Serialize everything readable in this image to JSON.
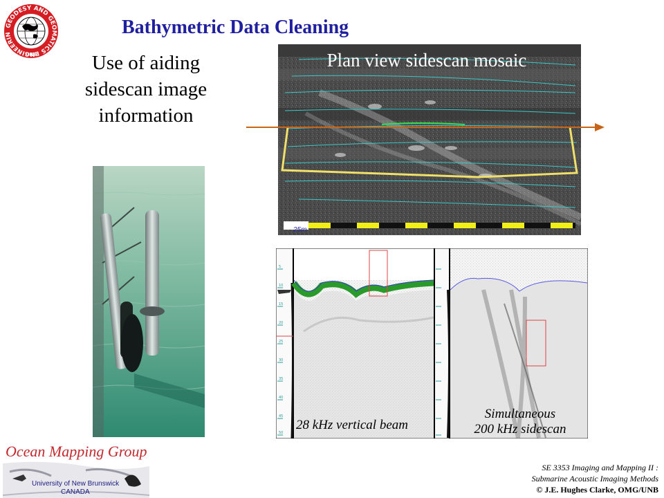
{
  "slide": {
    "title": "Bathymetric Data Cleaning",
    "subtitle_lines": [
      "Use of aiding",
      "sidescan image",
      "information"
    ]
  },
  "logo_unb": {
    "text": "GEODESY AND GEOMATICS ENGINEERING",
    "bottom": "UNB"
  },
  "mosaic": {
    "label": "Plan view sidescan mosaic",
    "scale_label": "25m"
  },
  "echogram": {
    "left_caption": "28 kHz vertical beam",
    "right_caption_lines": [
      "Simultaneous",
      "200 kHz sidescan"
    ],
    "depth_ticks": [
      "5",
      "10",
      "15",
      "20",
      "25",
      "30",
      "35",
      "40",
      "45",
      "50"
    ]
  },
  "footer": {
    "omg_title": "Ocean Mapping Group",
    "omg_university": "University of New Brunswick",
    "omg_country": "CANADA",
    "course_lines": [
      "SE 3353 Imaging and Mapping II :",
      "Submarine Acoustic Imaging Methods"
    ],
    "copyright": "© J.E. Hughes Clarke, OMG/UNB"
  },
  "colors": {
    "title": "#1f1fa0",
    "arrow": "#c86418",
    "track_lines": "#3cc8c8",
    "selection_box": "#f0e06a",
    "omg_red": "#c3282d"
  }
}
